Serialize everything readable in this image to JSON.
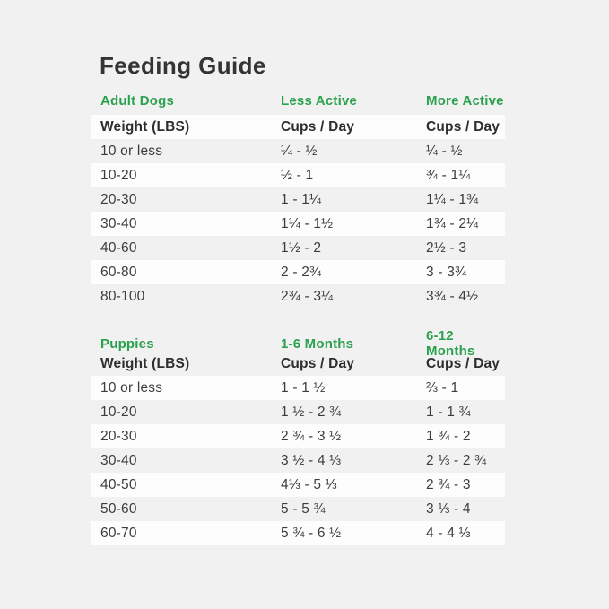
{
  "title": "Feeding Guide",
  "colors": {
    "page_background": "#f1f1f2",
    "row_highlight": "#fdfdfe",
    "accent_green": "#2aa14d",
    "heading_text": "#333436",
    "body_text": "#3c3c3e"
  },
  "adult": {
    "section": [
      "Adult Dogs",
      "Less Active",
      "More Active"
    ],
    "columns": [
      "Weight (LBS)",
      "Cups / Day",
      "Cups / Day"
    ],
    "rows": [
      [
        "10 or less",
        "¼ - ½",
        "¼ - ½"
      ],
      [
        "10-20",
        "½ - 1",
        "¾ - 1¼"
      ],
      [
        "20-30",
        "1 - 1¼",
        "1¼ - 1¾"
      ],
      [
        "30-40",
        "1¼ - 1½",
        "1¾ - 2¼"
      ],
      [
        "40-60",
        "1½ - 2",
        "2½ - 3"
      ],
      [
        "60-80",
        "2 - 2¾",
        "3 - 3¾"
      ],
      [
        "80-100",
        "2¾ - 3¼",
        "3¾ - 4½"
      ]
    ]
  },
  "puppies": {
    "section": [
      "Puppies",
      "1-6 Months",
      "6-12 Months"
    ],
    "columns": [
      "Weight (LBS)",
      "Cups / Day",
      "Cups / Day"
    ],
    "rows": [
      [
        "10 or less",
        "1 - 1 ½",
        "⅔ - 1"
      ],
      [
        "10-20",
        "1 ½ - 2 ¾",
        "1 - 1 ¾"
      ],
      [
        "20-30",
        "2 ¾ - 3 ½",
        "1 ¾ - 2"
      ],
      [
        "30-40",
        "3 ½ - 4 ⅓",
        "2 ⅓ - 2 ¾"
      ],
      [
        "40-50",
        "4⅓ - 5 ⅓",
        "2 ¾ - 3"
      ],
      [
        "50-60",
        "5 - 5 ¾",
        "3 ⅓ - 4"
      ],
      [
        "60-70",
        "5 ¾ - 6 ½",
        "4 - 4 ⅓"
      ]
    ]
  }
}
